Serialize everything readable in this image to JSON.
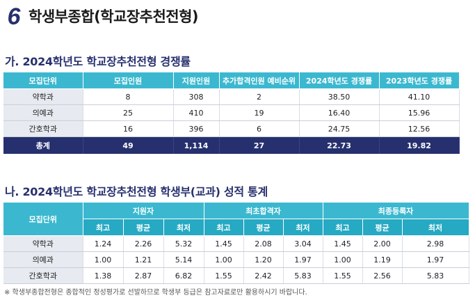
{
  "heading": {
    "number": "6",
    "title": "학생부종합(학교장추천전형)"
  },
  "section_a": {
    "title": "가. 2024학년도 학교장추천전형 경쟁률",
    "headers": [
      "모집단위",
      "모집인원",
      "지원인원",
      "추가합격인원 예비순위",
      "2024학년도 경쟁률",
      "2023학년도 경쟁률"
    ],
    "rows": [
      [
        "약학과",
        "8",
        "308",
        "2",
        "38.50",
        "41.10"
      ],
      [
        "의예과",
        "25",
        "410",
        "19",
        "16.40",
        "15.96"
      ],
      [
        "간호학과",
        "16",
        "396",
        "6",
        "24.75",
        "12.56"
      ]
    ],
    "total": [
      "총계",
      "49",
      "1,114",
      "27",
      "22.73",
      "19.82"
    ]
  },
  "section_b": {
    "title": "나. 2024학년도 학교장추천전형 학생부(교과) 성적 통계",
    "unit_header": "모집단위",
    "groups": [
      "지원자",
      "최초합격자",
      "최종등록자"
    ],
    "sub_headers": [
      "최고",
      "평균",
      "최저",
      "최고",
      "평균",
      "최저",
      "최고",
      "평균",
      "최저"
    ],
    "rows": [
      [
        "약학과",
        "1.24",
        "2.26",
        "5.32",
        "1.45",
        "2.08",
        "3.04",
        "1.45",
        "2.00",
        "2.98"
      ],
      [
        "의예과",
        "1.00",
        "1.21",
        "5.14",
        "1.00",
        "1.20",
        "1.97",
        "1.00",
        "1.19",
        "1.97"
      ],
      [
        "간호학과",
        "1.38",
        "2.87",
        "6.82",
        "1.55",
        "2.42",
        "5.83",
        "1.55",
        "2.56",
        "5.83"
      ]
    ]
  },
  "note": "※ 학생부종합전형은 종합적인 정성평가로 선발하므로 학생부 등급은 참고자료로만 활용하시기 바랍니다.",
  "colors": {
    "navy": "#27306e",
    "cyan": "#3bb8cf",
    "cyan_dark": "#26a9c3",
    "label_bg": "#e7ebf1"
  }
}
